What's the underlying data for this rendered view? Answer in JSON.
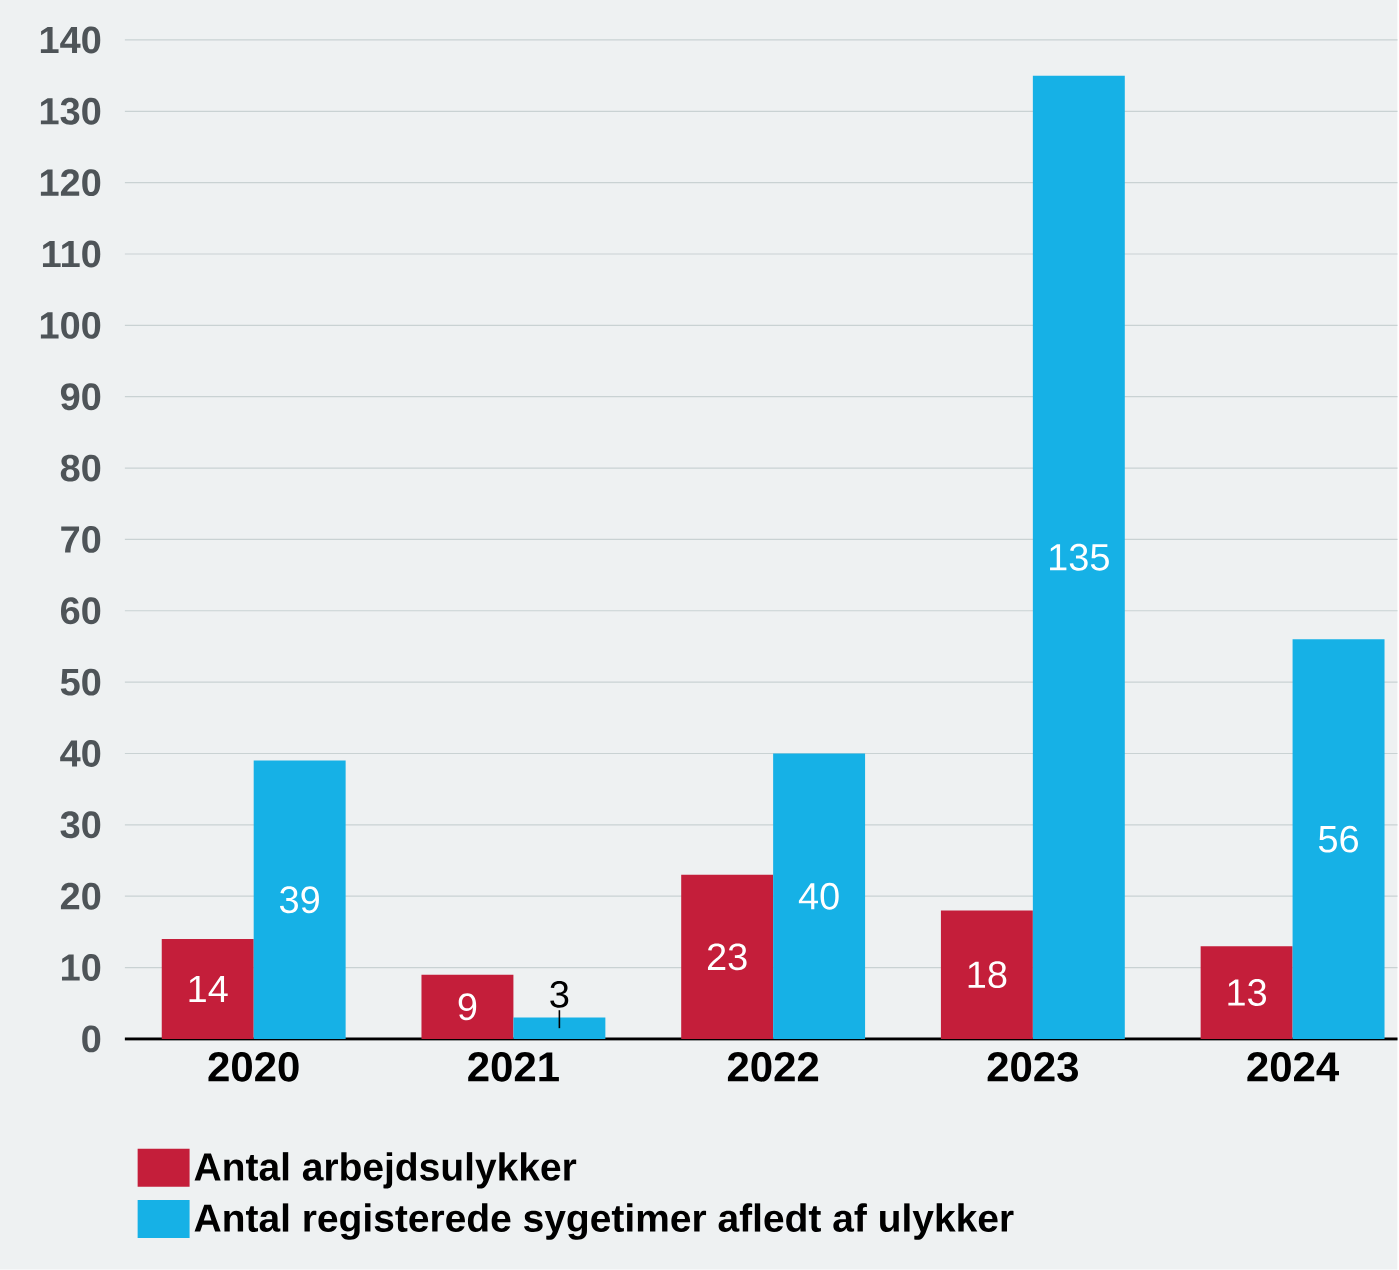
{
  "chart_data": {
    "type": "bar",
    "categories": [
      "2020",
      "2021",
      "2022",
      "2023",
      "2024"
    ],
    "series": [
      {
        "name": "Antal arbejdsulykker",
        "color": "#c41e3a",
        "values": [
          14,
          9,
          23,
          18,
          13
        ]
      },
      {
        "name": "Antal registerede sygetimer afledt af ulykker",
        "color": "#16b1e6",
        "values": [
          39,
          3,
          40,
          135,
          56
        ]
      }
    ],
    "ylim": [
      0,
      140
    ],
    "yticks": [
      0,
      10,
      20,
      30,
      40,
      50,
      60,
      70,
      80,
      90,
      100,
      110,
      120,
      130,
      140
    ],
    "grid": "y",
    "legend": "bottom",
    "data_labels": true
  }
}
